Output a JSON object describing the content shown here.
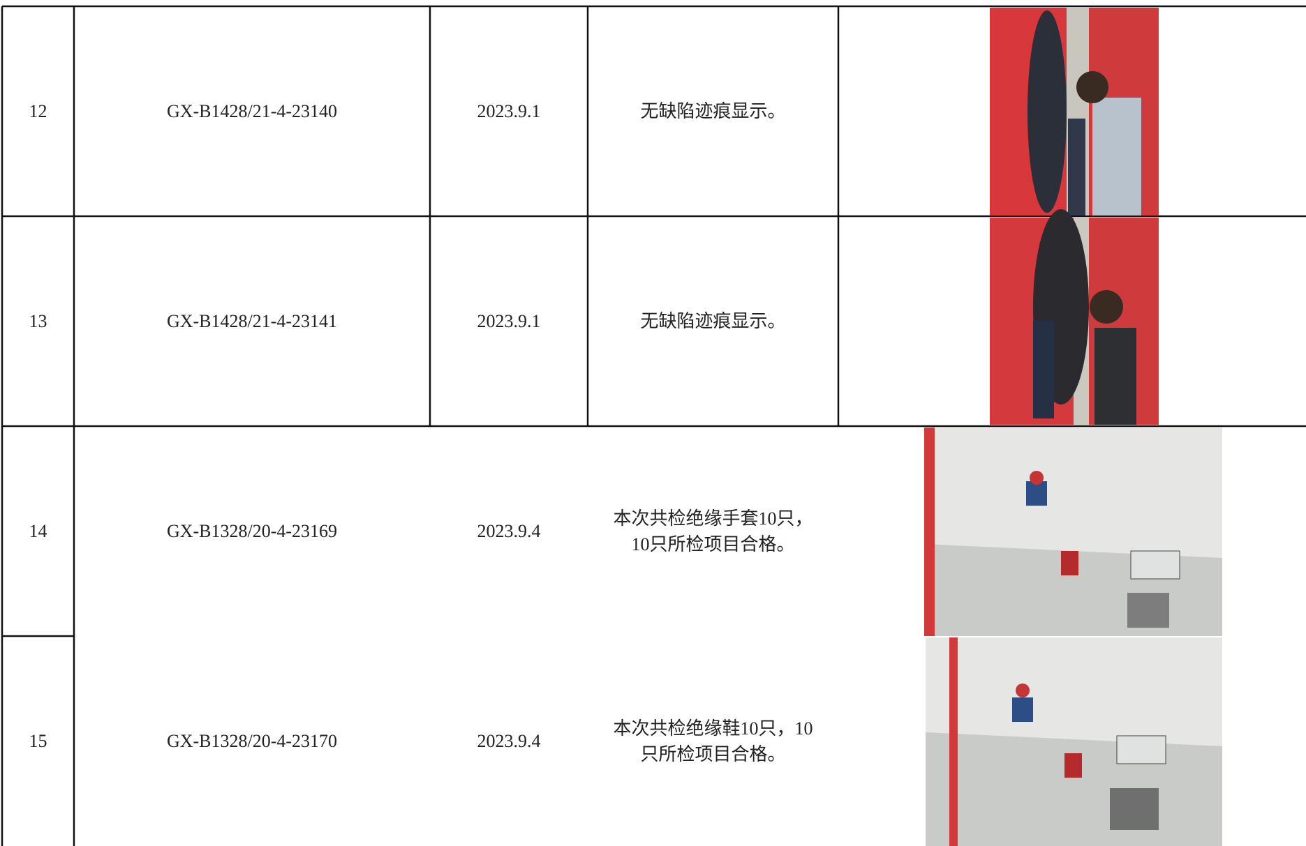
{
  "table": {
    "rows": [
      {
        "index": "12",
        "code": "GX-B1428/21-4-23140",
        "date": "2023.9.1",
        "result": [
          "无缺陷迹痕显示。"
        ]
      },
      {
        "index": "13",
        "code": "GX-B1428/21-4-23141",
        "date": "2023.9.1",
        "result": [
          "无缺陷迹痕显示。"
        ]
      },
      {
        "index": "14",
        "code": "GX-B1328/20-4-23169",
        "date": "2023.9.4",
        "result": [
          "本次共检绝缘手套10只，",
          "10只所检项目合格。"
        ]
      },
      {
        "index": "15",
        "code": "GX-B1328/20-4-23170",
        "date": "2023.9.4",
        "result": [
          "本次共检绝缘鞋10只，10",
          "只所检项目合格。"
        ]
      }
    ]
  }
}
